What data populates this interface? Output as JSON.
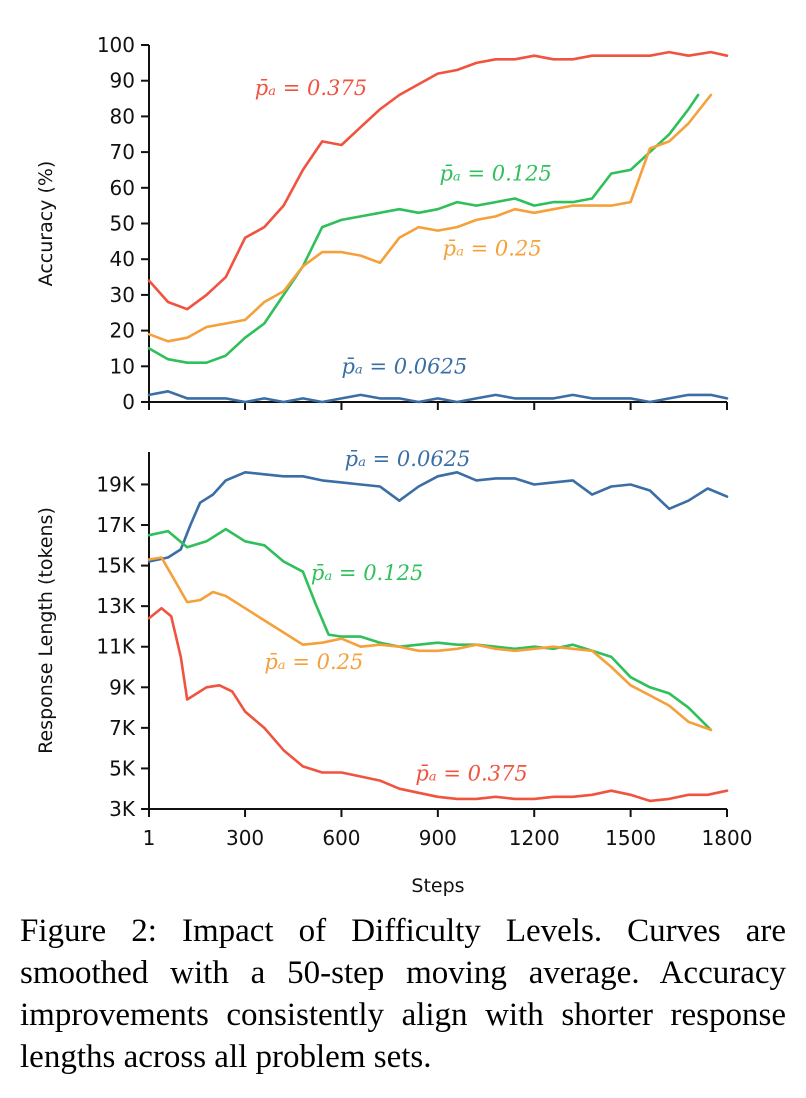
{
  "caption": {
    "label": "Figure 2:",
    "text": "Impact of Difficulty Levels. Curves are smoothed with a 50-step moving average. Accuracy improvements consistently align with shorter response lengths across all problem sets."
  },
  "colors": {
    "p0625": "#3a6ea5",
    "p125": "#2fbf5b",
    "p25": "#f5a03a",
    "p375": "#f0533f"
  },
  "chart_data": [
    {
      "type": "line",
      "ylabel": "Accuracy (%)",
      "xlabel": "",
      "xlim": [
        1,
        1800
      ],
      "ylim": [
        0,
        100
      ],
      "x_ticks": [
        1,
        300,
        600,
        900,
        1200,
        1500,
        1800
      ],
      "y_ticks": [
        0,
        10,
        20,
        30,
        40,
        50,
        60,
        70,
        80,
        90,
        100
      ],
      "y_tick_labels": [
        "0",
        "10",
        "20",
        "30",
        "40",
        "50",
        "60",
        "70",
        "80",
        "90",
        "100"
      ],
      "grid": false,
      "annotations": [
        {
          "series": "p375",
          "text": "p̄ₐ = 0.375",
          "x": 330,
          "y": 86
        },
        {
          "series": "p125",
          "text": "p̄ₐ = 0.125",
          "x": 905,
          "y": 62
        },
        {
          "series": "p25",
          "text": "p̄ₐ = 0.25",
          "x": 915,
          "y": 41
        },
        {
          "series": "p0625",
          "text": "p̄ₐ = 0.0625",
          "x": 600,
          "y": 8
        }
      ],
      "series": [
        {
          "key": "p375",
          "color": "#f0533f",
          "x": [
            1,
            60,
            120,
            180,
            240,
            300,
            360,
            420,
            480,
            540,
            600,
            660,
            720,
            780,
            840,
            900,
            960,
            1020,
            1080,
            1140,
            1200,
            1260,
            1320,
            1380,
            1440,
            1500,
            1560,
            1620,
            1680,
            1750,
            1800
          ],
          "y": [
            34,
            28,
            26,
            30,
            35,
            46,
            49,
            55,
            65,
            73,
            72,
            77,
            82,
            86,
            89,
            92,
            93,
            95,
            96,
            96,
            97,
            96,
            96,
            97,
            97,
            97,
            97,
            98,
            97,
            98,
            97
          ]
        },
        {
          "key": "p125",
          "color": "#2fbf5b",
          "x": [
            1,
            60,
            120,
            180,
            240,
            300,
            360,
            420,
            480,
            540,
            600,
            660,
            720,
            780,
            840,
            900,
            960,
            1020,
            1080,
            1140,
            1200,
            1260,
            1320,
            1380,
            1440,
            1500,
            1560,
            1620,
            1680,
            1710
          ],
          "y": [
            15,
            12,
            11,
            11,
            13,
            18,
            22,
            30,
            38,
            49,
            51,
            52,
            53,
            54,
            53,
            54,
            56,
            55,
            56,
            57,
            55,
            56,
            56,
            57,
            64,
            65,
            70,
            75,
            82,
            86
          ]
        },
        {
          "key": "p25",
          "color": "#f5a03a",
          "x": [
            1,
            60,
            120,
            180,
            240,
            300,
            360,
            420,
            480,
            540,
            600,
            660,
            720,
            780,
            840,
            900,
            960,
            1020,
            1080,
            1140,
            1200,
            1260,
            1320,
            1380,
            1440,
            1500,
            1560,
            1620,
            1680,
            1750
          ],
          "y": [
            19,
            17,
            18,
            21,
            22,
            23,
            28,
            31,
            38,
            42,
            42,
            41,
            39,
            46,
            49,
            48,
            49,
            51,
            52,
            54,
            53,
            54,
            55,
            55,
            55,
            56,
            71,
            73,
            78,
            86
          ]
        },
        {
          "key": "p0625",
          "color": "#3a6ea5",
          "x": [
            1,
            60,
            120,
            180,
            240,
            300,
            360,
            420,
            480,
            540,
            600,
            660,
            720,
            780,
            840,
            900,
            960,
            1020,
            1080,
            1140,
            1200,
            1260,
            1320,
            1380,
            1440,
            1500,
            1560,
            1620,
            1680,
            1750,
            1800
          ],
          "y": [
            2,
            3,
            1,
            1,
            1,
            0,
            1,
            0,
            1,
            0,
            1,
            2,
            1,
            1,
            0,
            1,
            0,
            1,
            2,
            1,
            1,
            1,
            2,
            1,
            1,
            1,
            0,
            1,
            2,
            2,
            1
          ]
        }
      ]
    },
    {
      "type": "line",
      "ylabel": "Response Length (tokens)",
      "xlabel": "Steps",
      "xlim": [
        1,
        1800
      ],
      "ylim": [
        3000,
        20600
      ],
      "x_ticks": [
        1,
        300,
        600,
        900,
        1200,
        1500,
        1800
      ],
      "x_tick_labels": [
        "1",
        "300",
        "600",
        "900",
        "1200",
        "1500",
        "1800"
      ],
      "y_ticks": [
        3000,
        5000,
        7000,
        9000,
        11000,
        13000,
        15000,
        17000,
        19000
      ],
      "y_tick_labels": [
        "3K",
        "5K",
        "7K",
        "9K",
        "11K",
        "13K",
        "15K",
        "17K",
        "19K"
      ],
      "grid": false,
      "annotations": [
        {
          "series": "p0625",
          "text": "p̄ₐ = 0.0625",
          "x": 610,
          "y": 19900
        },
        {
          "series": "p125",
          "text": "p̄ₐ = 0.125",
          "x": 505,
          "y": 14300
        },
        {
          "series": "p25",
          "text": "p̄ₐ = 0.25",
          "x": 360,
          "y": 9900
        },
        {
          "series": "p375",
          "text": "p̄ₐ = 0.375",
          "x": 830,
          "y": 4400
        }
      ],
      "series": [
        {
          "key": "p0625",
          "color": "#3a6ea5",
          "x": [
            1,
            60,
            100,
            130,
            160,
            200,
            240,
            300,
            360,
            420,
            480,
            540,
            600,
            660,
            720,
            780,
            840,
            900,
            960,
            1020,
            1080,
            1140,
            1200,
            1260,
            1320,
            1380,
            1440,
            1500,
            1560,
            1620,
            1680,
            1740,
            1800
          ],
          "y": [
            15200,
            15400,
            15800,
            17000,
            18100,
            18500,
            19200,
            19600,
            19500,
            19400,
            19400,
            19200,
            19100,
            19000,
            18900,
            18200,
            18900,
            19400,
            19600,
            19200,
            19300,
            19300,
            19000,
            19100,
            19200,
            18500,
            18900,
            19000,
            18700,
            17800,
            18200,
            18800,
            18400
          ]
        },
        {
          "key": "p125",
          "color": "#2fbf5b",
          "x": [
            1,
            60,
            120,
            180,
            240,
            300,
            360,
            420,
            480,
            520,
            560,
            600,
            660,
            720,
            780,
            840,
            900,
            960,
            1020,
            1080,
            1140,
            1200,
            1260,
            1320,
            1380,
            1440,
            1500,
            1560,
            1620,
            1680,
            1750
          ],
          "y": [
            16500,
            16700,
            15900,
            16200,
            16800,
            16200,
            16000,
            15200,
            14700,
            13100,
            11600,
            11500,
            11500,
            11200,
            11000,
            11100,
            11200,
            11100,
            11100,
            11000,
            10900,
            11000,
            10900,
            11100,
            10800,
            10500,
            9500,
            9000,
            8700,
            8000,
            6900
          ]
        },
        {
          "key": "p25",
          "color": "#f5a03a",
          "x": [
            1,
            40,
            80,
            120,
            160,
            200,
            240,
            300,
            360,
            420,
            480,
            540,
            600,
            660,
            720,
            780,
            840,
            900,
            960,
            1020,
            1080,
            1140,
            1200,
            1260,
            1320,
            1380,
            1440,
            1500,
            1560,
            1620,
            1680,
            1750
          ],
          "y": [
            15300,
            15400,
            14300,
            13200,
            13300,
            13700,
            13500,
            12900,
            12300,
            11700,
            11100,
            11200,
            11400,
            11000,
            11100,
            11000,
            10800,
            10800,
            10900,
            11100,
            10900,
            10800,
            10900,
            11000,
            10900,
            10800,
            10000,
            9100,
            8600,
            8100,
            7300,
            6900
          ]
        },
        {
          "key": "p375",
          "color": "#f0533f",
          "x": [
            1,
            40,
            70,
            100,
            120,
            150,
            180,
            220,
            260,
            300,
            360,
            420,
            480,
            540,
            600,
            660,
            720,
            780,
            840,
            900,
            960,
            1020,
            1080,
            1140,
            1200,
            1260,
            1320,
            1380,
            1440,
            1500,
            1560,
            1620,
            1680,
            1740,
            1800
          ],
          "y": [
            12400,
            12900,
            12500,
            10500,
            8400,
            8700,
            9000,
            9100,
            8800,
            7800,
            7000,
            5900,
            5100,
            4800,
            4800,
            4600,
            4400,
            4000,
            3800,
            3600,
            3500,
            3500,
            3600,
            3500,
            3500,
            3600,
            3600,
            3700,
            3900,
            3700,
            3400,
            3500,
            3700,
            3700,
            3900
          ]
        }
      ]
    }
  ]
}
